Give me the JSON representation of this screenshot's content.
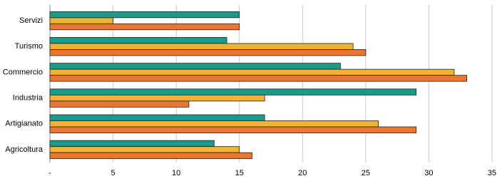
{
  "chart_data": {
    "type": "bar",
    "orientation": "horizontal",
    "categories": [
      "Servizi",
      "Turismo",
      "Commercio",
      "Industria",
      "Artigianato",
      "Agricoltura"
    ],
    "series": [
      {
        "color": "#1a9b8a",
        "values": [
          15,
          14,
          23,
          29,
          17,
          13
        ]
      },
      {
        "color": "#f2b233",
        "values": [
          5,
          24,
          32,
          17,
          26,
          15
        ]
      },
      {
        "color": "#ea7630",
        "values": [
          15,
          25,
          33,
          11,
          29,
          16
        ]
      }
    ],
    "xlim": [
      0,
      35
    ],
    "xticks": [
      {
        "value": 0,
        "label": "-"
      },
      5,
      10,
      15,
      20,
      25,
      30,
      35
    ],
    "grid": true
  }
}
